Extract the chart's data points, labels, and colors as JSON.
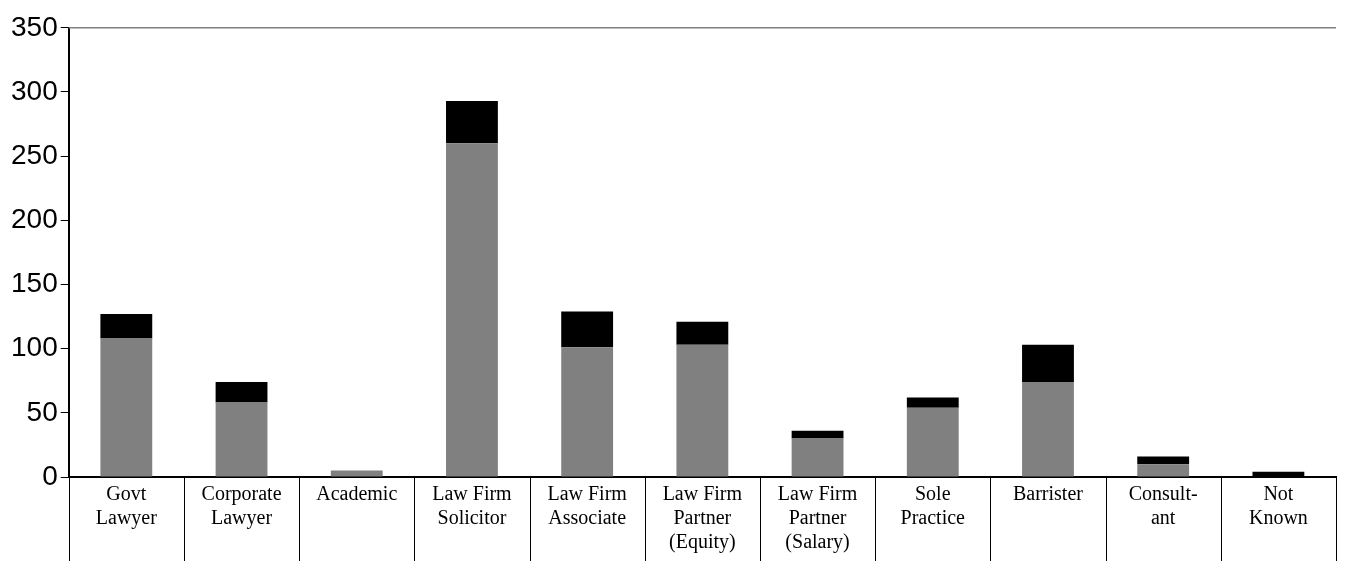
{
  "chart_data": {
    "type": "bar",
    "stacked": true,
    "categories": [
      "Govt\nLawyer",
      "Corporate\nLawyer",
      "Academic",
      "Law Firm\nSolicitor",
      "Law Firm\nAssociate",
      "Law Firm\nPartner\n(Equity)",
      "Law Firm\nPartner\n(Salary)",
      "Sole\nPractice",
      "Barrister",
      "Consult-\nant",
      "Not\nKnown"
    ],
    "series": [
      {
        "color": "#808080",
        "values": [
          108,
          58,
          5,
          260,
          101,
          103,
          30,
          54,
          74,
          10,
          0
        ]
      },
      {
        "color": "#000000",
        "values": [
          19,
          16,
          0,
          33,
          28,
          18,
          6,
          8,
          29,
          6,
          4
        ]
      }
    ],
    "ylim": [
      0,
      350
    ],
    "yticks": [
      0,
      50,
      100,
      150,
      200,
      250,
      300,
      350
    ],
    "grid": false,
    "legend": false
  }
}
